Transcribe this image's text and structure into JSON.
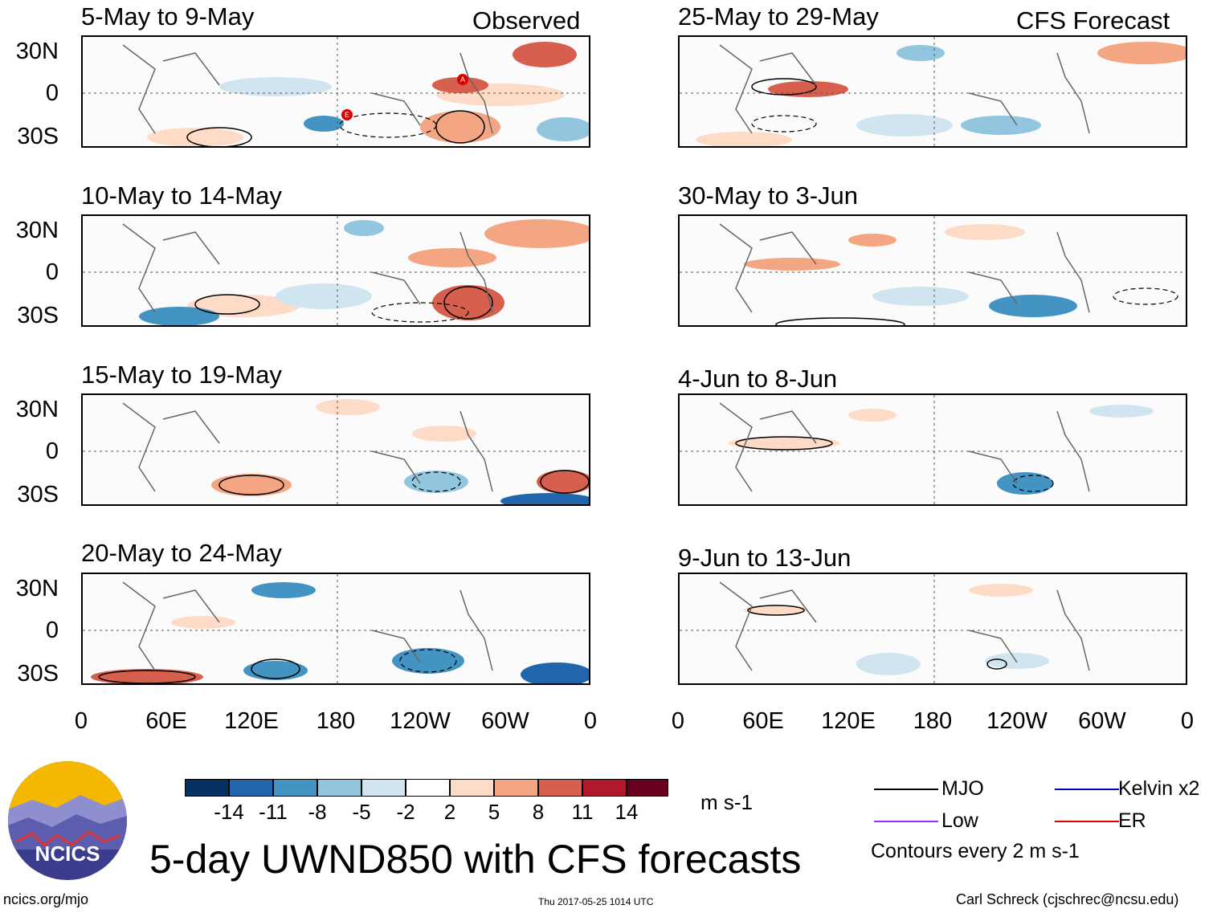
{
  "header": {
    "observed_label": "Observed",
    "forecast_label": "CFS Forecast"
  },
  "observed_panels": [
    {
      "period": "5-May to 9-May"
    },
    {
      "period": "10-May to 14-May"
    },
    {
      "period": "15-May to 19-May"
    },
    {
      "period": "20-May to 24-May"
    }
  ],
  "forecast_panels": [
    {
      "period": "25-May to 29-May"
    },
    {
      "period": "30-May to 3-Jun"
    },
    {
      "period": "4-Jun to 8-Jun"
    },
    {
      "period": "9-Jun to 13-Jun"
    }
  ],
  "axes": {
    "lat_ticks": [
      "30N",
      "0",
      "30S"
    ],
    "lon_ticks": [
      "0",
      "60E",
      "120E",
      "180",
      "120W",
      "60W",
      "0"
    ]
  },
  "storm_markers": [
    "A",
    "E"
  ],
  "colorbar": {
    "colors": [
      "#053061",
      "#2166ac",
      "#4393c3",
      "#92c5de",
      "#d1e5f0",
      "#ffffff",
      "#fddbc7",
      "#f4a582",
      "#d6604d",
      "#b2182b",
      "#67001f"
    ],
    "labels": [
      "-14",
      "-11",
      "-8",
      "-5",
      "-2",
      "2",
      "5",
      "8",
      "11",
      "14"
    ],
    "units": "m s-1"
  },
  "legend": {
    "items": [
      {
        "label": "MJO",
        "color": "#000000"
      },
      {
        "label": "Kelvin x2",
        "color": "#0000cc"
      },
      {
        "label": "Low",
        "color": "#9b30ff"
      },
      {
        "label": "ER",
        "color": "#dd0000"
      }
    ],
    "note": "Contours every 2 m s-1"
  },
  "logo": {
    "text": "NCICS"
  },
  "title": "5-day UWND850 with CFS forecasts",
  "footer": {
    "url": "ncics.org/mjo",
    "timestamp": "Thu 2017-05-25 1014 UTC",
    "author": "Carl Schreck (cjschrec@ncsu.edu)"
  }
}
